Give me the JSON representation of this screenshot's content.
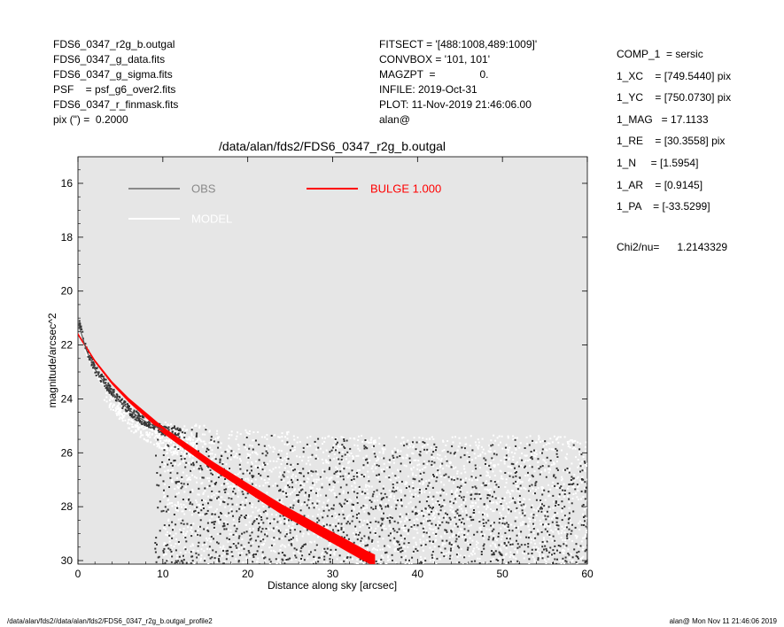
{
  "header_left": [
    "FDS6_0347_r2g_b.outgal",
    "FDS6_0347_g_data.fits",
    "FDS6_0347_g_sigma.fits",
    "PSF    = psf_g6_over2.fits",
    "FDS6_0347_r_finmask.fits",
    "pix (\") =  0.2000"
  ],
  "header_mid": [
    "FITSECT = '[488:1008,489:1009]'",
    "CONVBOX = '101, 101'",
    "MAGZPT  =               0.",
    "INFILE: 2019-Oct-31",
    "PLOT: 11-Nov-2019 21:46:06.00",
    "alan@"
  ],
  "header_right": [
    "COMP_1  = sersic",
    "1_XC    = [749.5440] pix",
    "1_YC    = [750.0730] pix",
    "1_MAG   = 17.1133",
    "1_RE    = [30.3558] pix",
    "1_N     = [1.5954]",
    "1_AR    = [0.9145]",
    "1_PA    = [-33.5299]"
  ],
  "chi2": "Chi2/nu=      1.2143329",
  "footer_left": "/data/alan/fds2//data/alan/fds2/FDS6_0347_r2g_b.outgal_profile2",
  "footer_right": "alan@  Mon Nov 11 21:46:06 2019",
  "colors": {
    "plot_bg": "#e6e6e6",
    "obs": "#8a8a8a",
    "model": "#ffffff",
    "bulge": "#ff0000",
    "obs_points": "#333333"
  },
  "chart_data": {
    "type": "scatter",
    "title": "/data/alan/fds2/FDS6_0347_r2g_b.outgal",
    "xlabel": "Distance along sky [arcsec]",
    "ylabel": "magnitude/arcsec^2",
    "xlim": [
      0,
      60
    ],
    "ylim": [
      30,
      15
    ],
    "y_inverted": true,
    "xticks": [
      0,
      10,
      20,
      30,
      40,
      50,
      60
    ],
    "yticks": [
      16,
      18,
      20,
      22,
      24,
      26,
      28,
      30
    ],
    "legend": [
      {
        "label": "OBS",
        "color": "#8a8a8a"
      },
      {
        "label": "MODEL",
        "color": "#ffffff"
      },
      {
        "label": "BULGE  1.000",
        "color": "#ff0000"
      }
    ],
    "series": [
      {
        "name": "BULGE  1.000",
        "kind": "band",
        "x": [
          0,
          2,
          4,
          6,
          8,
          10,
          12,
          14,
          16,
          18,
          20,
          22,
          24,
          26,
          28,
          30,
          32,
          34,
          35
        ],
        "y": [
          21.6,
          22.6,
          23.4,
          24.05,
          24.6,
          25.15,
          25.6,
          26.05,
          26.5,
          26.9,
          27.3,
          27.7,
          28.1,
          28.45,
          28.8,
          29.15,
          29.5,
          29.85,
          30.0
        ],
        "halfwidth": [
          0.05,
          0.05,
          0.06,
          0.08,
          0.1,
          0.12,
          0.13,
          0.14,
          0.15,
          0.16,
          0.17,
          0.18,
          0.19,
          0.2,
          0.2,
          0.21,
          0.22,
          0.22,
          0.22
        ]
      },
      {
        "name": "OBS",
        "kind": "profile",
        "x": [
          0,
          1,
          2,
          3,
          4,
          5,
          6,
          7,
          8,
          9,
          10
        ],
        "y": [
          21.15,
          22.2,
          22.9,
          23.35,
          23.75,
          24.1,
          24.4,
          24.65,
          24.85,
          25.0,
          25.15
        ]
      },
      {
        "name": "MODEL",
        "kind": "noise_floor",
        "x": [
          5,
          10,
          20,
          30,
          40,
          50,
          60
        ],
        "y": [
          24.3,
          24.8,
          25.1,
          25.3,
          25.4,
          25.3,
          25.4
        ]
      }
    ]
  }
}
